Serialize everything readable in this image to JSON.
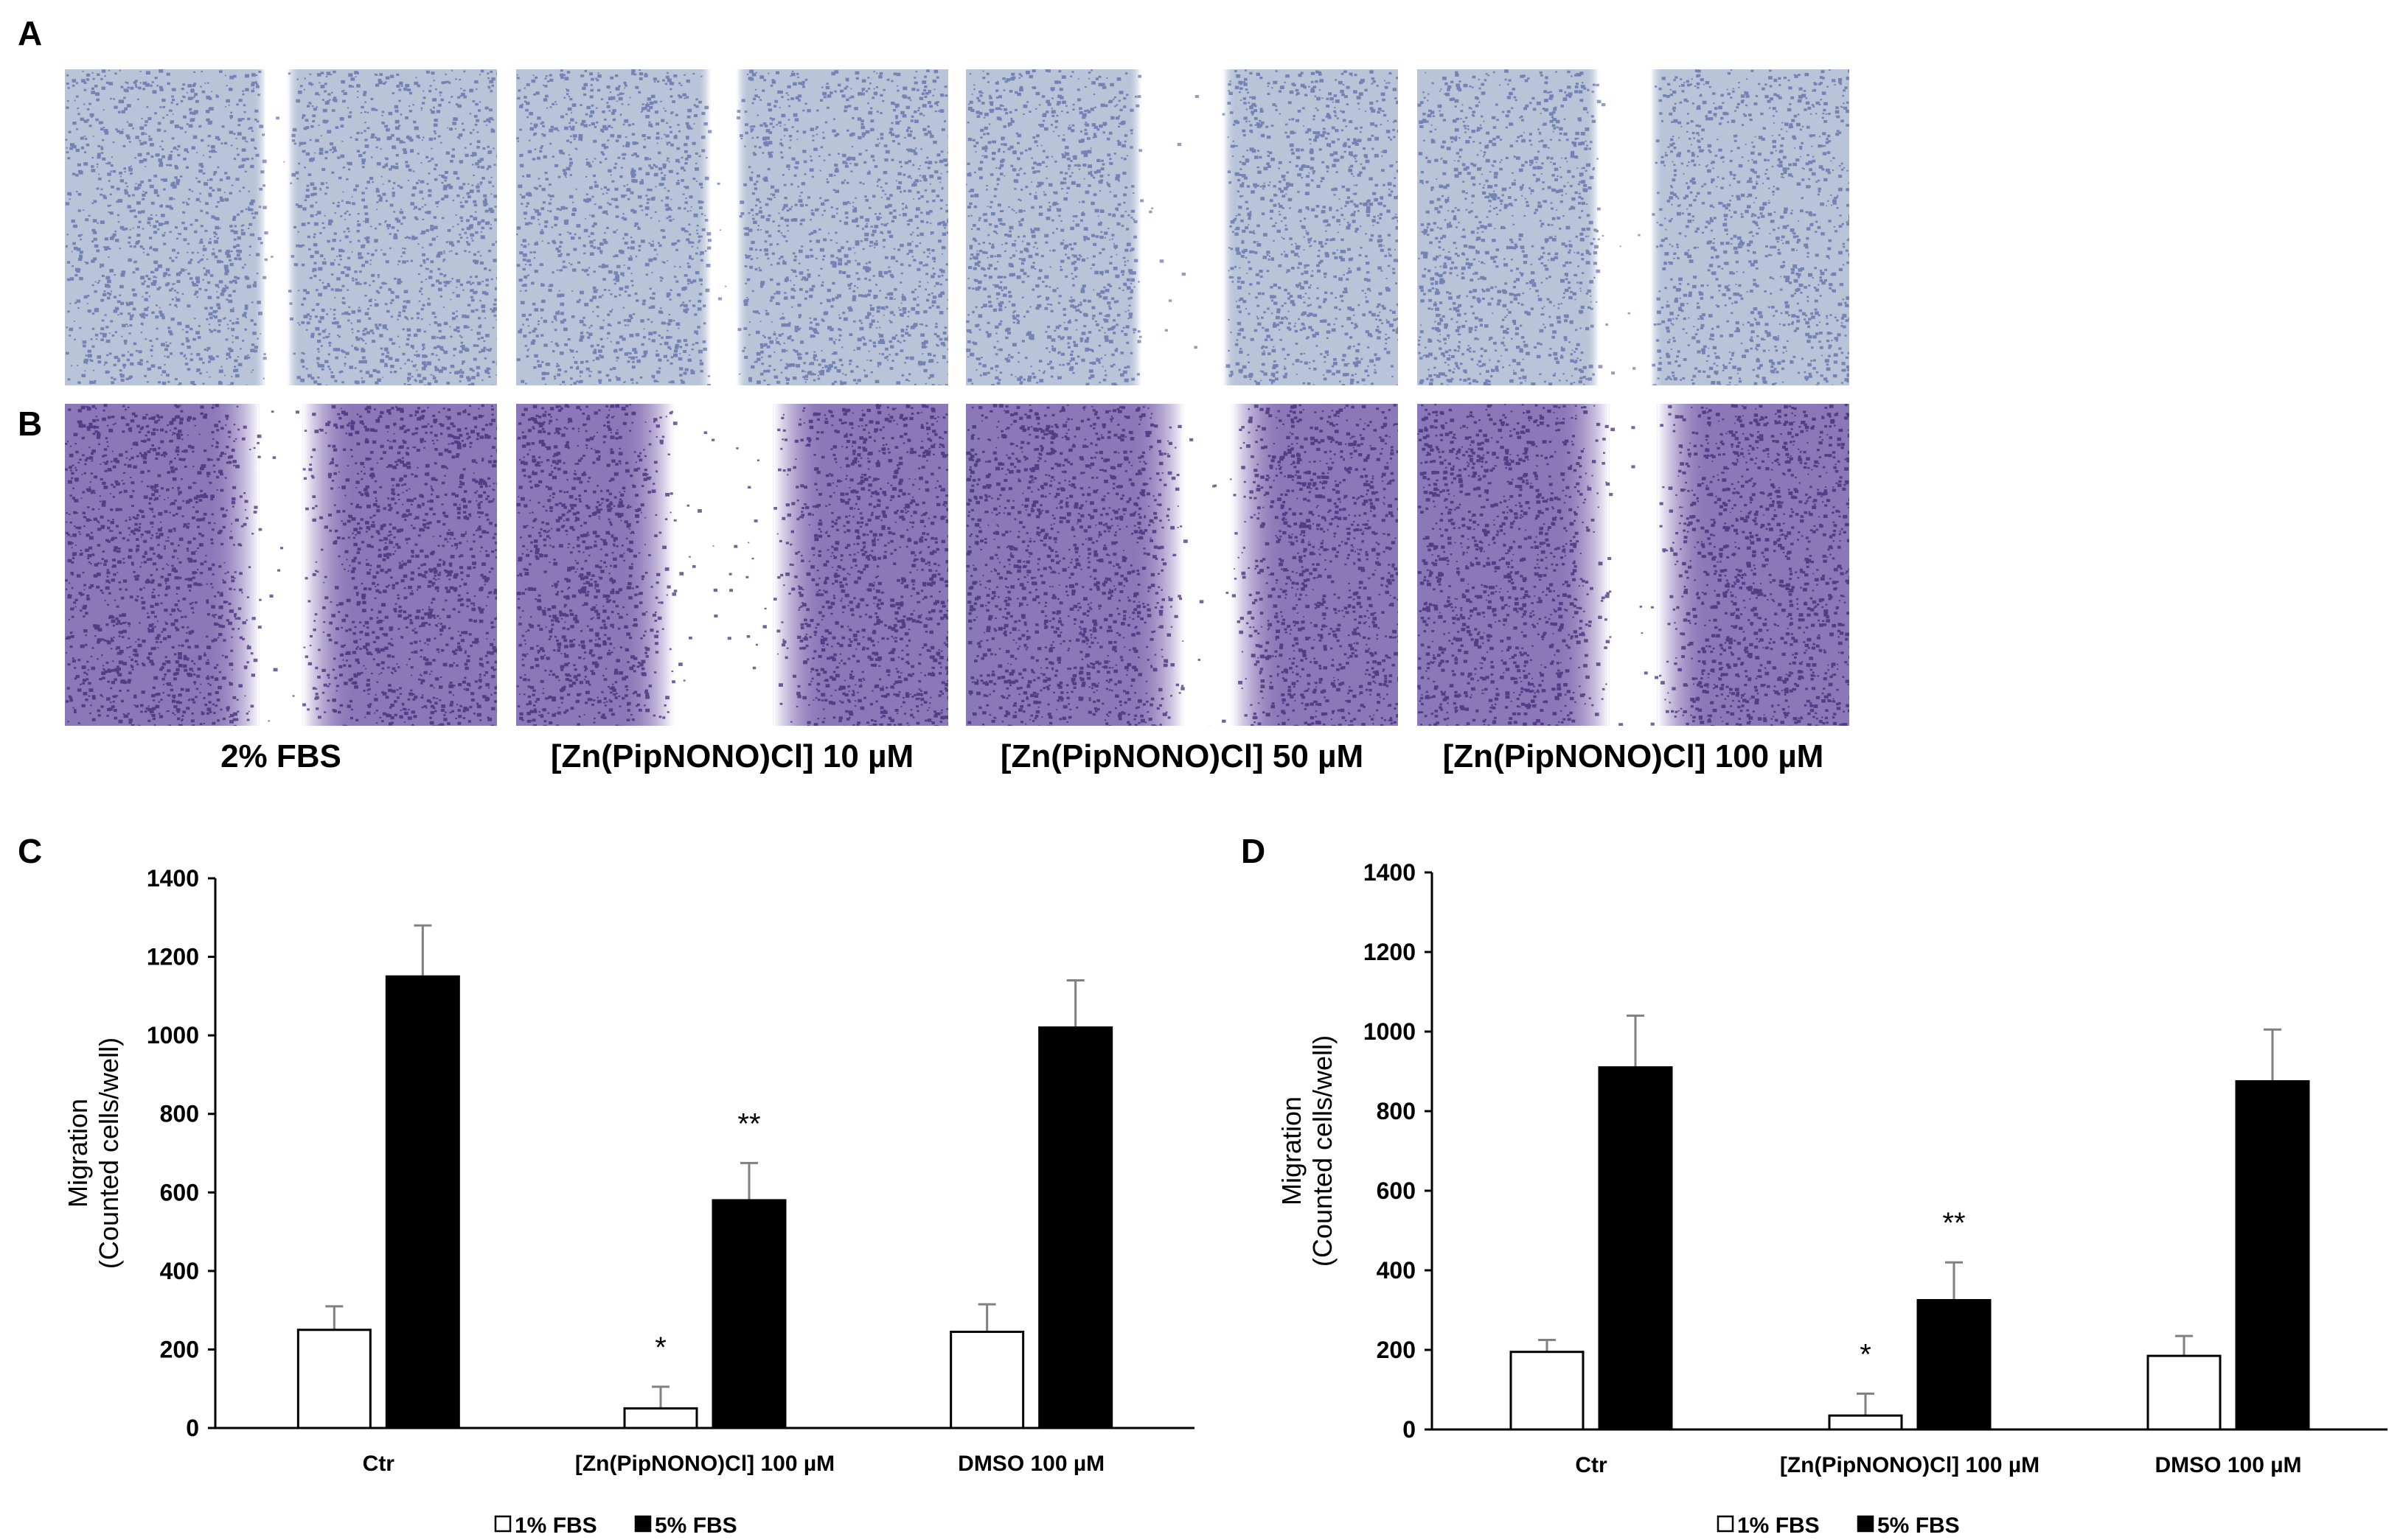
{
  "panels": {
    "A": "A",
    "B": "B",
    "C": "C",
    "D": "D"
  },
  "captions": [
    "2% FBS",
    "[Zn(PipNONO)Cl] 10 µM",
    "[Zn(PipNONO)Cl] 50 µM",
    "[Zn(PipNONO)Cl] 100 µM"
  ],
  "colors": {
    "row_a_cells": "#3c4f96",
    "row_a_background": "#b9c4d8",
    "row_b_cells": "#3b2470",
    "row_b_background": "#8b78b8",
    "bar_open": "#ffffff",
    "bar_filled": "#000000",
    "error_bar": "#808080"
  },
  "chart_data": [
    {
      "type": "bar",
      "panel": "C",
      "categories": [
        "Ctr",
        "[Zn(PipNONO)Cl] 100 µM",
        "DMSO 100 µM"
      ],
      "series": [
        {
          "name": "1% FBS",
          "values": [
            250,
            50,
            245
          ],
          "errors": [
            60,
            55,
            70
          ]
        },
        {
          "name": "5% FBS",
          "values": [
            1150,
            580,
            1020
          ],
          "errors": [
            130,
            95,
            120
          ]
        }
      ],
      "annotations": [
        {
          "category": 1,
          "series": 0,
          "text": "*"
        },
        {
          "category": 1,
          "series": 1,
          "text": "**"
        }
      ],
      "ylabel": [
        "Migration",
        "(Counted cells/well)"
      ],
      "ylim": [
        0,
        1400
      ],
      "yticks": [
        0,
        200,
        400,
        600,
        800,
        1000,
        1200,
        1400
      ],
      "legend": "bottom"
    },
    {
      "type": "bar",
      "panel": "D",
      "categories": [
        "Ctr",
        "[Zn(PipNONO)Cl]  100 µM",
        "DMSO 100 µM"
      ],
      "series": [
        {
          "name": "1% FBS",
          "values": [
            195,
            35,
            185
          ],
          "errors": [
            30,
            55,
            50
          ]
        },
        {
          "name": "5% FBS",
          "values": [
            910,
            325,
            875
          ],
          "errors": [
            130,
            95,
            130
          ]
        }
      ],
      "annotations": [
        {
          "category": 1,
          "series": 0,
          "text": "*"
        },
        {
          "category": 1,
          "series": 1,
          "text": "**"
        }
      ],
      "ylabel": [
        "Migration",
        "(Counted cells/well)"
      ],
      "ylim": [
        0,
        1400
      ],
      "yticks": [
        0,
        200,
        400,
        600,
        800,
        1000,
        1200,
        1400
      ],
      "legend": "bottom"
    }
  ]
}
